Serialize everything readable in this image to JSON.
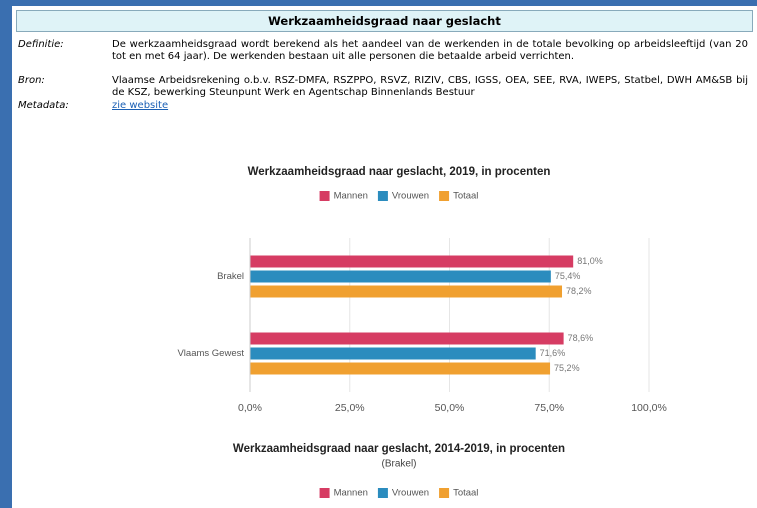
{
  "header": {
    "title": "Werkzaamheidsgraad naar geslacht"
  },
  "definitions": [
    {
      "label": "Definitie:",
      "text": "De werkzaamheidsgraad wordt berekend als het aandeel van de werkenden in de totale bevolking op arbeidsleeftijd (van 20 tot en met 64 jaar). De werkenden bestaan uit alle personen die betaalde arbeid verrichten."
    },
    {
      "label": "Bron:",
      "text": "Vlaamse Arbeidsrekening o.b.v. RSZ-DMFA, RSZPPO, RSVZ, RIZIV, CBS, IGSS, OEA, SEE, RVA, IWEPS, Statbel, DWH AM&SB bij de KSZ, bewerking Steunpunt Werk en Agentschap Binnenlands Bestuur"
    },
    {
      "label": "Metadata:",
      "text": "zie website"
    }
  ],
  "chart_data": [
    {
      "type": "hbar",
      "title": "Werkzaamheidsgraad naar geslacht, 2019, in procenten",
      "categories": [
        "Brakel",
        "Vlaams Gewest"
      ],
      "series": [
        {
          "name": "Mannen",
          "color": "#d63c63",
          "values": [
            81.0,
            78.6
          ],
          "value_labels": [
            "81,0%",
            "78,6%"
          ]
        },
        {
          "name": "Vrouwen",
          "color": "#2b8cbe",
          "values": [
            75.4,
            71.6
          ],
          "value_labels": [
            "75,4%",
            "71,6%"
          ]
        },
        {
          "name": "Totaal",
          "color": "#f0a030",
          "values": [
            78.2,
            75.2
          ],
          "value_labels": [
            "78,2%",
            "75,2%"
          ]
        }
      ],
      "xlim": [
        0,
        100
      ],
      "xticks": [
        {
          "value": 0,
          "label": "0,0%"
        },
        {
          "value": 25,
          "label": "25,0%"
        },
        {
          "value": 50,
          "label": "50,0%"
        },
        {
          "value": 75,
          "label": "75,0%"
        },
        {
          "value": 100,
          "label": "100,0%"
        }
      ],
      "grid": true,
      "legend": "top"
    },
    {
      "type": "line",
      "title": "Werkzaamheidsgraad naar geslacht, 2014-2019, in procenten",
      "subtitle": "(Brakel)",
      "series": [
        {
          "name": "Mannen",
          "color": "#d63c63"
        },
        {
          "name": "Vrouwen",
          "color": "#2b8cbe"
        },
        {
          "name": "Totaal",
          "color": "#f0a030"
        }
      ],
      "legend": "top"
    }
  ]
}
